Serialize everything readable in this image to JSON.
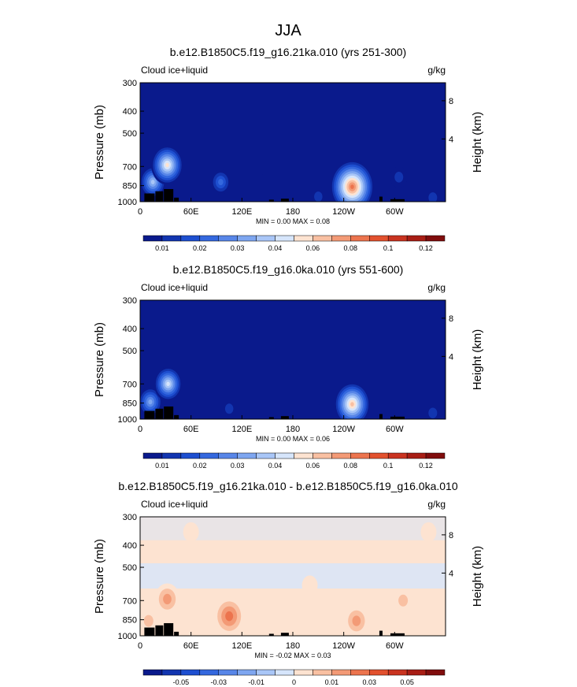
{
  "figure_title": "JJA",
  "panels": [
    {
      "title": "b.e12.B1850C5.f19_g16.21ka.010 (yrs 251-300)",
      "left_label": "Cloud ice+liquid",
      "units": "g/kg",
      "ylabel": "Pressure (mb)",
      "ylabel_right": "Height (km)",
      "minmax": "MIN =   0.00  MAX =   0.08",
      "colorbar_labels": [
        "0.01",
        "0.02",
        "0.03",
        "0.04",
        "0.06",
        "0.08",
        "0.1",
        "0.12"
      ]
    },
    {
      "title": "b.e12.B1850C5.f19_g16.0ka.010 (yrs 551-600)",
      "left_label": "Cloud ice+liquid",
      "units": "g/kg",
      "ylabel": "Pressure (mb)",
      "ylabel_right": "Height (km)",
      "minmax": "MIN =   0.00  MAX =   0.06",
      "colorbar_labels": [
        "0.01",
        "0.02",
        "0.03",
        "0.04",
        "0.06",
        "0.08",
        "0.1",
        "0.12"
      ]
    },
    {
      "title": "b.e12.B1850C5.f19_g16.21ka.010 - b.e12.B1850C5.f19_g16.0ka.010",
      "left_label": "Cloud ice+liquid",
      "units": "g/kg",
      "ylabel": "Pressure (mb)",
      "ylabel_right": "Height (km)",
      "minmax": "MIN = -0.02  MAX =  0.03",
      "colorbar_labels": [
        "-0.05",
        "-0.03",
        "-0.01",
        "0",
        "0.01",
        "0.03",
        "0.05"
      ]
    }
  ],
  "chart_data": [
    {
      "type": "heatmap",
      "title": "b.e12.B1850C5.f19_g16.21ka.010 (yrs 251-300)",
      "ylabel": "Pressure (mb)",
      "x_ticks": [
        "0",
        "60E",
        "120E",
        "180",
        "120W",
        "60W"
      ],
      "x_tick_values": [
        0,
        60,
        120,
        180,
        240,
        300
      ],
      "xlim": [
        0,
        360
      ],
      "y_ticks": [
        "300",
        "400",
        "500",
        "700",
        "850",
        "1000"
      ],
      "y_tick_values": [
        300,
        400,
        500,
        700,
        850,
        1000
      ],
      "ylim": [
        1000,
        300
      ],
      "right_axis_ticks": [
        "8",
        "4"
      ],
      "min": 0.0,
      "max": 0.08,
      "colorbar_levels": [
        0.005,
        0.01,
        0.015,
        0.02,
        0.025,
        0.03,
        0.035,
        0.04,
        0.05,
        0.06,
        0.07,
        0.08,
        0.09,
        0.1,
        0.11,
        0.12,
        0.13
      ],
      "colors": [
        "#0a1a8c",
        "#1235b0",
        "#1e4fd0",
        "#3468de",
        "#5886e8",
        "#7ea6f0",
        "#a9c6f7",
        "#d6e5fb",
        "#fde3d1",
        "#f9c0a2",
        "#f39a76",
        "#ec744e",
        "#e2512e",
        "#c93320",
        "#a81e15",
        "#800d0d"
      ],
      "background_color": "#0a1a8c",
      "features": [
        {
          "lon": 15,
          "p": 820,
          "peak": 0.035
        },
        {
          "lon": 32,
          "p": 690,
          "peak": 0.05
        },
        {
          "lon": 95,
          "p": 820,
          "peak": 0.02
        },
        {
          "lon": 140,
          "p": 830,
          "peak": 0.008
        },
        {
          "lon": 210,
          "p": 950,
          "peak": 0.01
        },
        {
          "lon": 250,
          "p": 860,
          "peak": 0.08
        },
        {
          "lon": 305,
          "p": 780,
          "peak": 0.012
        },
        {
          "lon": 345,
          "p": 960,
          "peak": 0.012
        }
      ]
    },
    {
      "type": "heatmap",
      "title": "b.e12.B1850C5.f19_g16.0ka.010 (yrs 551-600)",
      "ylabel": "Pressure (mb)",
      "x_ticks": [
        "0",
        "60E",
        "120E",
        "180",
        "120W",
        "60W"
      ],
      "x_tick_values": [
        0,
        60,
        120,
        180,
        240,
        300
      ],
      "xlim": [
        0,
        360
      ],
      "y_ticks": [
        "300",
        "400",
        "500",
        "700",
        "850",
        "1000"
      ],
      "y_tick_values": [
        300,
        400,
        500,
        700,
        850,
        1000
      ],
      "ylim": [
        1000,
        300
      ],
      "right_axis_ticks": [
        "8",
        "4"
      ],
      "min": 0.0,
      "max": 0.06,
      "colorbar_levels": [
        0.005,
        0.01,
        0.015,
        0.02,
        0.025,
        0.03,
        0.035,
        0.04,
        0.05,
        0.06,
        0.07,
        0.08,
        0.09,
        0.1,
        0.11,
        0.12,
        0.13
      ],
      "colors": [
        "#0a1a8c",
        "#1235b0",
        "#1e4fd0",
        "#3468de",
        "#5886e8",
        "#7ea6f0",
        "#a9c6f7",
        "#d6e5fb",
        "#fde3d1",
        "#f9c0a2",
        "#f39a76",
        "#ec744e",
        "#e2512e",
        "#c93320",
        "#a81e15",
        "#800d0d"
      ],
      "background_color": "#0a1a8c",
      "features": [
        {
          "lon": 12,
          "p": 840,
          "peak": 0.03
        },
        {
          "lon": 33,
          "p": 700,
          "peak": 0.04
        },
        {
          "lon": 105,
          "p": 900,
          "peak": 0.01
        },
        {
          "lon": 250,
          "p": 860,
          "peak": 0.06
        },
        {
          "lon": 345,
          "p": 940,
          "peak": 0.012
        }
      ]
    },
    {
      "type": "heatmap",
      "title": "b.e12.B1850C5.f19_g16.21ka.010 - b.e12.B1850C5.f19_g16.0ka.010",
      "ylabel": "Pressure (mb)",
      "x_ticks": [
        "0",
        "60E",
        "120E",
        "180",
        "120W",
        "60W"
      ],
      "x_tick_values": [
        0,
        60,
        120,
        180,
        240,
        300
      ],
      "xlim": [
        0,
        360
      ],
      "y_ticks": [
        "300",
        "400",
        "500",
        "700",
        "850",
        "1000"
      ],
      "y_tick_values": [
        300,
        400,
        500,
        700,
        850,
        1000
      ],
      "ylim": [
        1000,
        300
      ],
      "right_axis_ticks": [
        "8",
        "4"
      ],
      "min": -0.02,
      "max": 0.03,
      "colorbar_levels": [
        -0.06,
        -0.05,
        -0.04,
        -0.03,
        -0.02,
        -0.01,
        -0.005,
        0,
        0.005,
        0.01,
        0.02,
        0.03,
        0.04,
        0.05,
        0.06
      ],
      "colors": [
        "#0a1a8c",
        "#1235b0",
        "#1e4fd0",
        "#3468de",
        "#5886e8",
        "#7ea6f0",
        "#a9c6f7",
        "#d6e5fb",
        "#fde3d1",
        "#f9c0a2",
        "#f39a76",
        "#ec744e",
        "#e2512e",
        "#c93320",
        "#a81e15",
        "#800d0d"
      ],
      "background_color": "#fde3d1",
      "features": [
        {
          "lon": 10,
          "p": 860,
          "peak": 0.01
        },
        {
          "lon": 32,
          "p": 690,
          "peak": 0.02
        },
        {
          "lon": 105,
          "p": 820,
          "peak": 0.03
        },
        {
          "lon": 255,
          "p": 860,
          "peak": 0.02
        },
        {
          "lon": 310,
          "p": 700,
          "peak": 0.01
        },
        {
          "lon": 340,
          "p": 350,
          "peak": 0.005
        },
        {
          "lon": 60,
          "p": 350,
          "peak": 0.005
        },
        {
          "lon": 200,
          "p": 600,
          "peak": -0.005
        },
        {
          "lon": 180,
          "p": 930,
          "peak": -0.005
        }
      ]
    }
  ],
  "colors": {
    "topography": "#000000",
    "frame": "#000000"
  }
}
